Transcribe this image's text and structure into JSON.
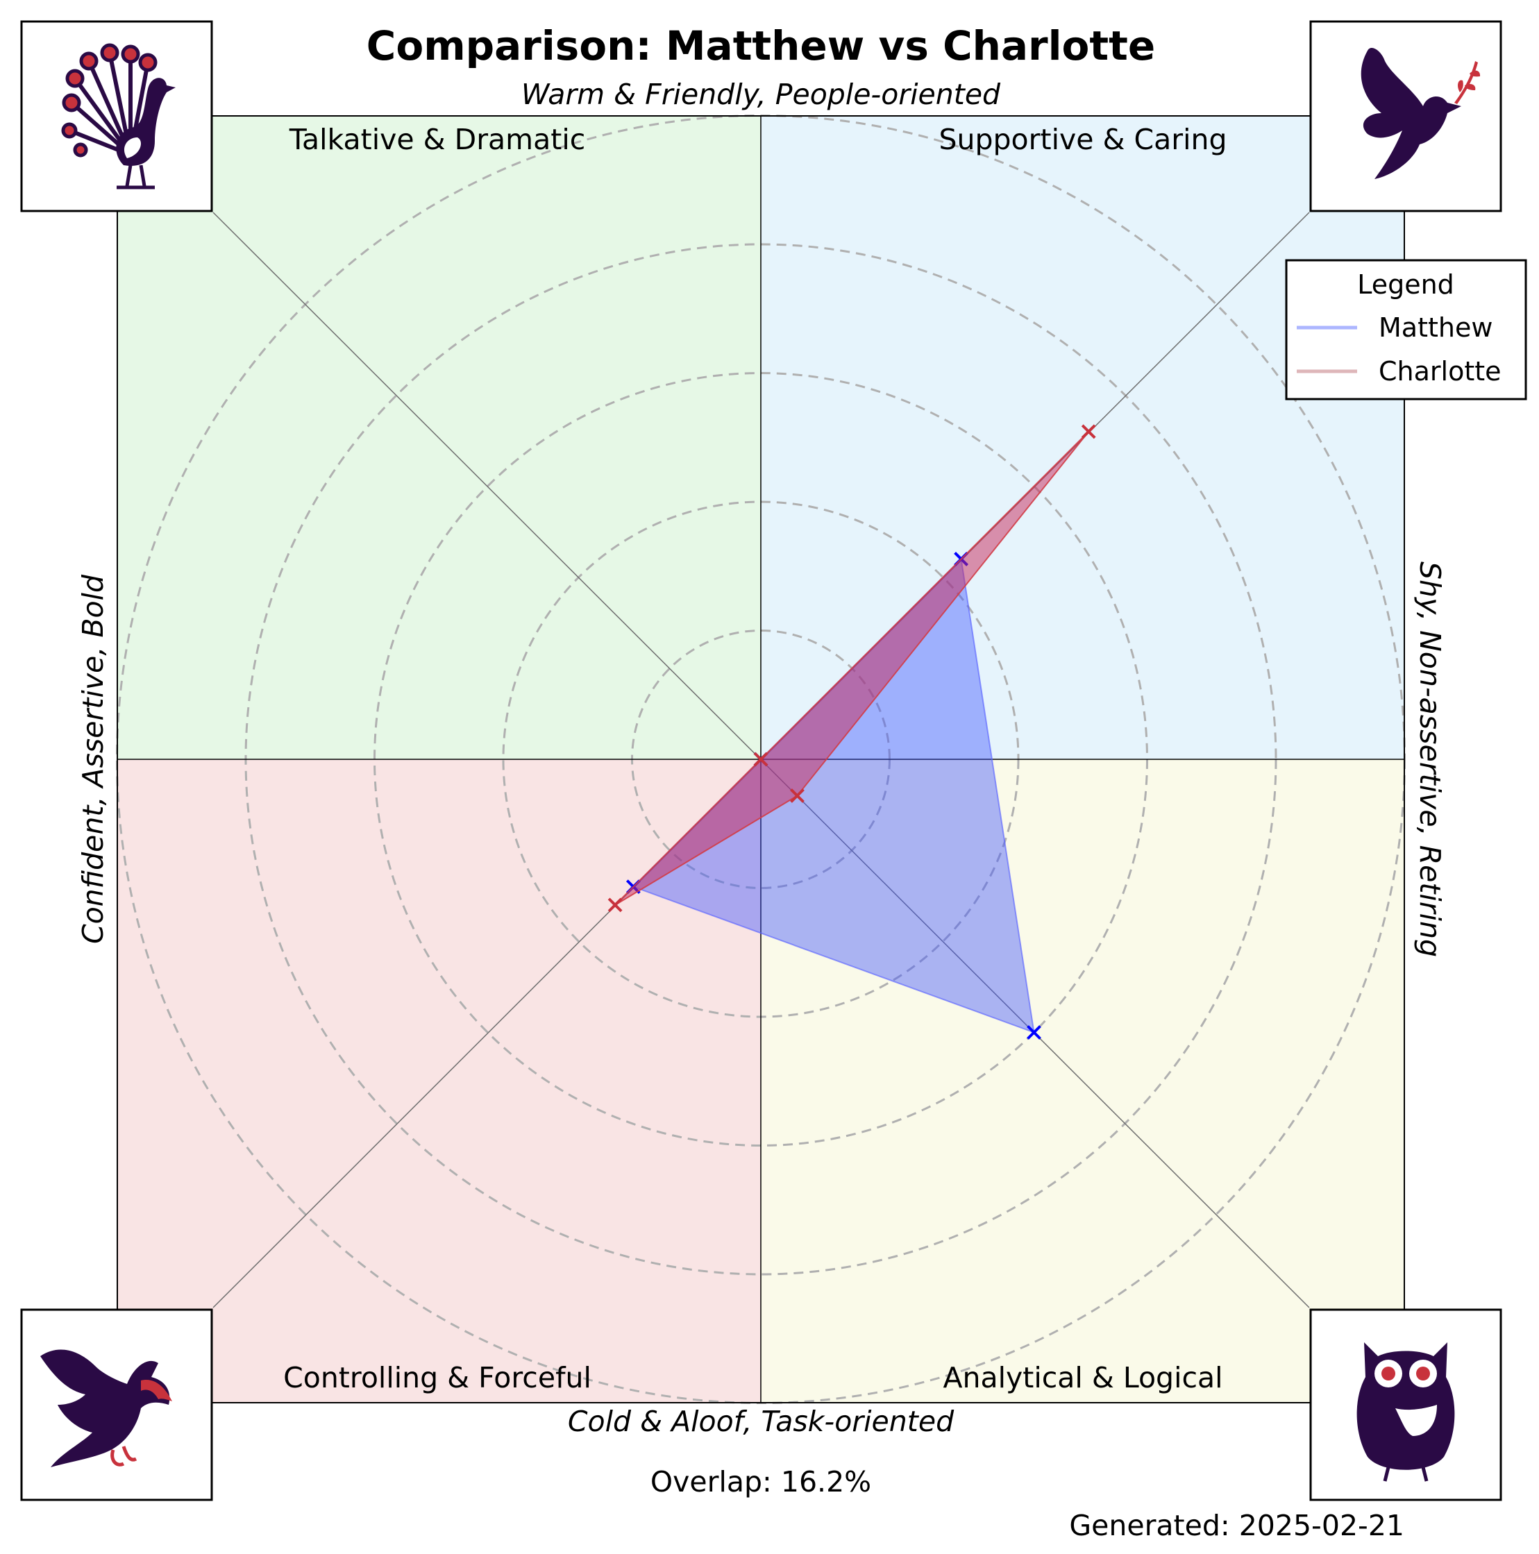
{
  "chart_data": {
    "type": "radar",
    "title": "Comparison: Matthew vs Charlotte",
    "axis_labels": {
      "top": "Warm & Friendly, People-oriented",
      "bottom": "Cold & Aloof, Task-oriented",
      "left": "Confident, Assertive, Bold",
      "right": "Shy, Non-assertive, Retiring"
    },
    "quadrants": [
      {
        "name": "Talkative & Dramatic",
        "position": "top-left",
        "color": "#e6f8e6",
        "icon": "peacock-icon"
      },
      {
        "name": "Supportive & Caring",
        "position": "top-right",
        "color": "#e6f4fc",
        "icon": "dove-icon"
      },
      {
        "name": "Controlling & Forceful",
        "position": "bottom-left",
        "color": "#f9e4e4",
        "icon": "eagle-icon"
      },
      {
        "name": "Analytical & Logical",
        "position": "bottom-right",
        "color": "#fafae9",
        "icon": "owl-icon"
      }
    ],
    "scale_max": 5,
    "rings": [
      1,
      2,
      3,
      4,
      5
    ],
    "grid": true,
    "series": [
      {
        "name": "Matthew",
        "color": "#0000ff",
        "values": {
          "top-right": 2.2,
          "bottom-right": 3.0,
          "bottom-left": 1.4,
          "top-left": 0
        }
      },
      {
        "name": "Charlotte",
        "color": "#c8323c",
        "values": {
          "top-right": 3.6,
          "bottom-right": 0.4,
          "bottom-left": 1.6,
          "top-left": 0
        }
      }
    ],
    "legend": {
      "title": "Legend",
      "placement": "top-right"
    }
  },
  "footer": {
    "overlap": "Overlap: 16.2%",
    "generated": "Generated: 2025-02-21"
  },
  "colors": {
    "icon_dark": "#2a0a45",
    "icon_accent": "#c8323c"
  }
}
